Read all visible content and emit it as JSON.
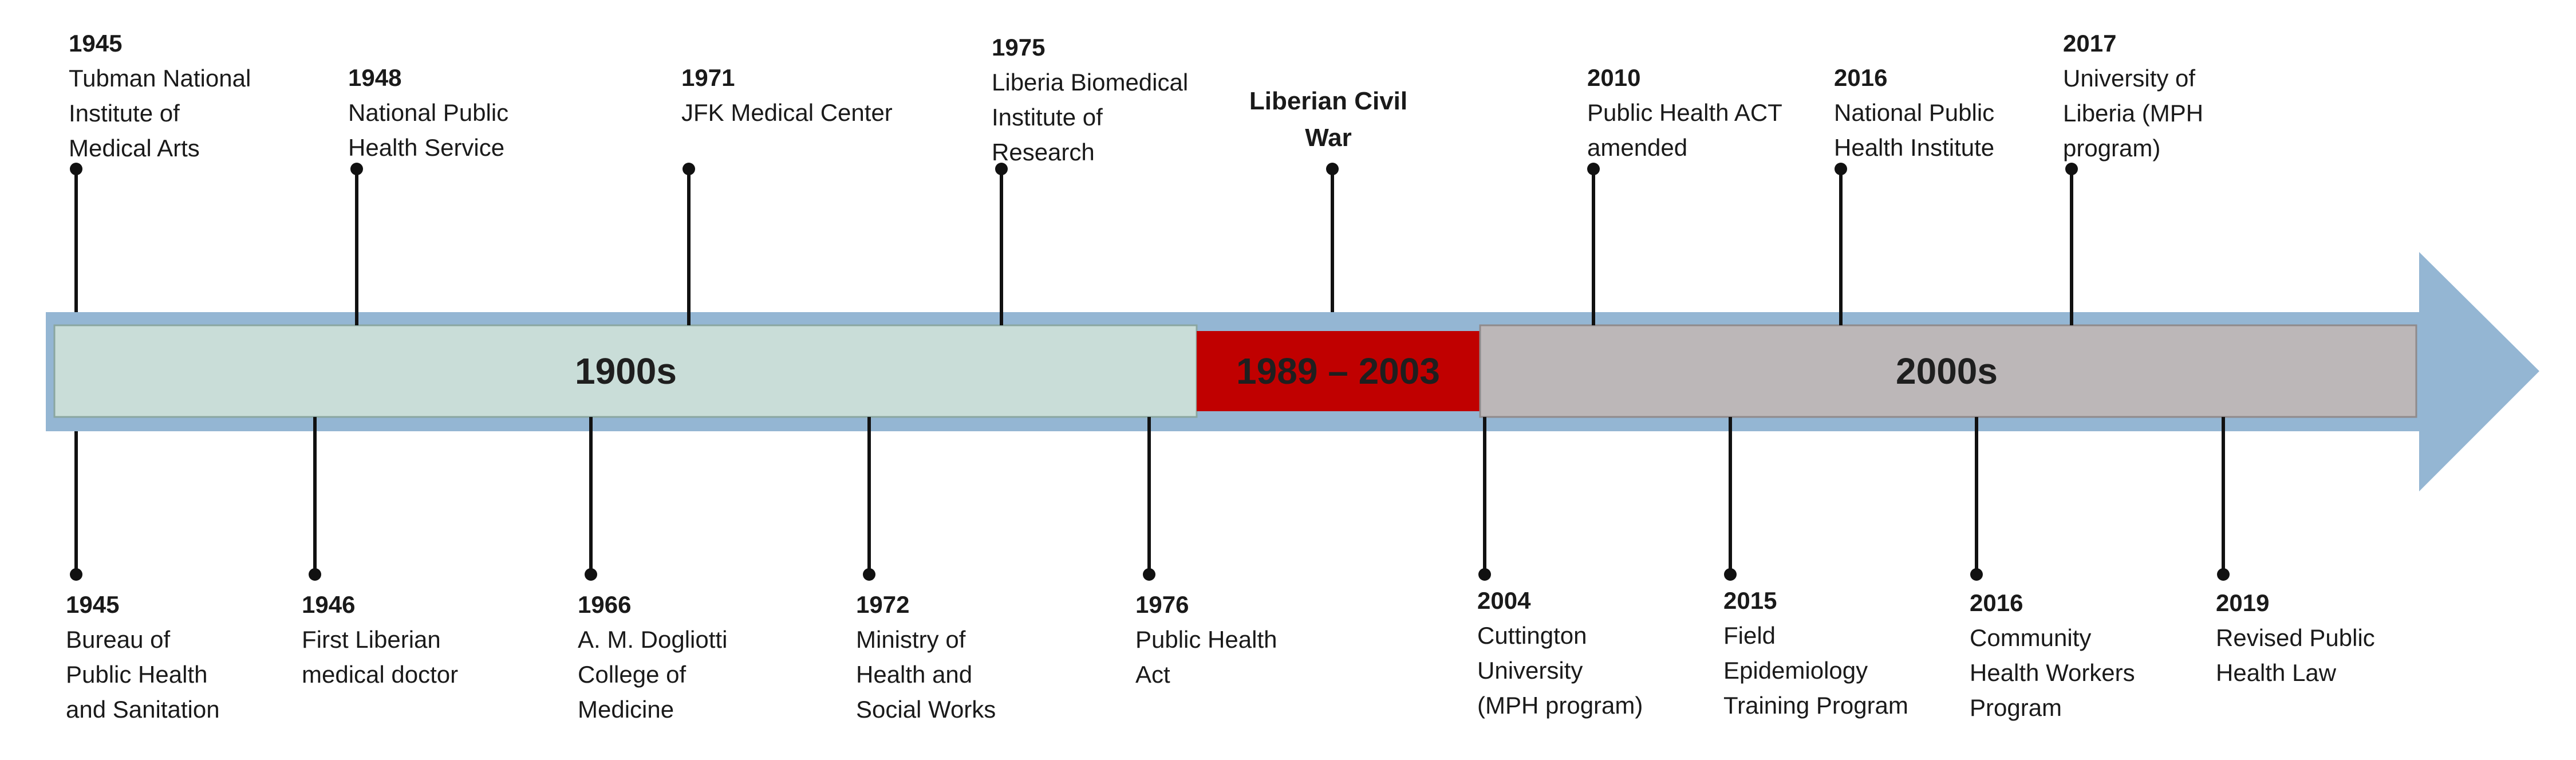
{
  "segments": {
    "s1900": "1900s",
    "war": "1989 – 2003",
    "s2000": "2000s"
  },
  "war_label": "Liberian Civil\nWar",
  "top_events": [
    {
      "year": "1945",
      "desc": "Tubman National\nInstitute of\nMedical Arts"
    },
    {
      "year": "1948",
      "desc": "National Public\nHealth Service"
    },
    {
      "year": "1971",
      "desc": "JFK Medical Center"
    },
    {
      "year": "1975",
      "desc": "Liberia Biomedical\nInstitute of\nResearch"
    },
    {
      "year": "2010",
      "desc": "Public Health ACT\namended"
    },
    {
      "year": "2016",
      "desc": "National Public\nHealth Institute"
    },
    {
      "year": "2017",
      "desc": "University of\nLiberia (MPH\nprogram)"
    }
  ],
  "bottom_events": [
    {
      "year": "1945",
      "desc": "Bureau of\nPublic Health\nand Sanitation"
    },
    {
      "year": "1946",
      "desc": "First Liberian\nmedical doctor"
    },
    {
      "year": "1966",
      "desc": "A. M. Dogliotti\nCollege of\nMedicine"
    },
    {
      "year": "1972",
      "desc": "Ministry of\nHealth and\nSocial Works"
    },
    {
      "year": "1976",
      "desc": "Public Health\nAct"
    },
    {
      "year": "2004",
      "desc": "Cuttington\nUniversity\n(MPH program)"
    },
    {
      "year": "2015",
      "desc": "Field\nEpidemiology\nTraining Program"
    },
    {
      "year": "2016",
      "desc": "Community\nHealth Workers\nProgram"
    },
    {
      "year": "2019",
      "desc": "Revised Public\nHealth Law"
    }
  ],
  "colors": {
    "arrow": "#94b6d3",
    "era_1900s": "#c9ddd8",
    "civil_war": "#c00000",
    "era_2000s": "#bcb7b8"
  }
}
